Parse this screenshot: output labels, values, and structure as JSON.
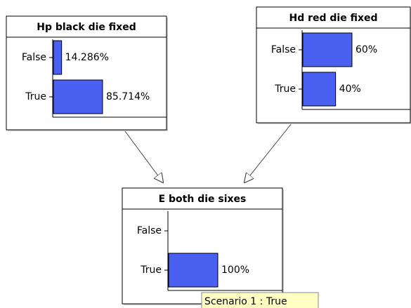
{
  "nodes": [
    {
      "title": "Hp black die fixed",
      "states": [
        {
          "label": "False",
          "value": 14.286,
          "value_label": "14.286%"
        },
        {
          "label": "True",
          "value": 85.714,
          "value_label": "85.714%"
        }
      ]
    },
    {
      "title": "Hd red die fixed",
      "states": [
        {
          "label": "False",
          "value": 60,
          "value_label": "60%"
        },
        {
          "label": "True",
          "value": 40,
          "value_label": "40%"
        }
      ]
    },
    {
      "title": "E both die sixes",
      "states": [
        {
          "label": "False",
          "value": 0
        },
        {
          "label": "True",
          "value": 100,
          "value_label": "100%"
        }
      ]
    }
  ],
  "tooltip": "Scenario 1 : True"
}
